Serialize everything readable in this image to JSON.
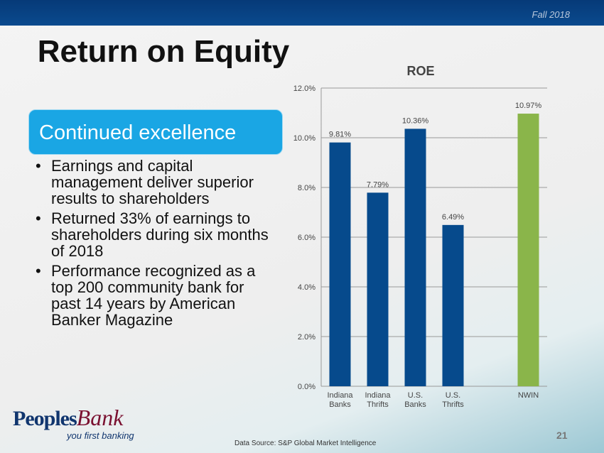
{
  "header": {
    "season": "Fall 2018"
  },
  "title": "Return on Equity",
  "subtitle": "Continued excellence",
  "bullets": [
    "Earnings and capital management deliver superior results to shareholders",
    "Returned 33% of earnings to shareholders during six months of 2018",
    "Performance recognized as a top 200 community bank for past 14 years by American Banker Magazine"
  ],
  "logo": {
    "name1": "Peoples",
    "name2": "Bank",
    "tagline": "you first banking"
  },
  "source": "Data Source: S&P Global Market Intelligence",
  "page_number": "21",
  "chart_data": {
    "type": "bar",
    "title": "ROE",
    "categories": [
      "Indiana Banks",
      "Indiana Thrifts",
      "U.S. Banks",
      "U.S. Thrifts",
      "",
      "NWIN"
    ],
    "values": [
      9.81,
      7.79,
      10.36,
      6.49,
      null,
      10.97
    ],
    "labels": [
      "9.81%",
      "7.79%",
      "10.36%",
      "6.49%",
      "",
      "10.97%"
    ],
    "colors": [
      "#064a8c",
      "#064a8c",
      "#064a8c",
      "#064a8c",
      "",
      "#8ab54a"
    ],
    "yticks": [
      "0.0%",
      "2.0%",
      "4.0%",
      "6.0%",
      "8.0%",
      "10.0%",
      "12.0%"
    ],
    "ylim": [
      0,
      12
    ],
    "grid": true
  }
}
